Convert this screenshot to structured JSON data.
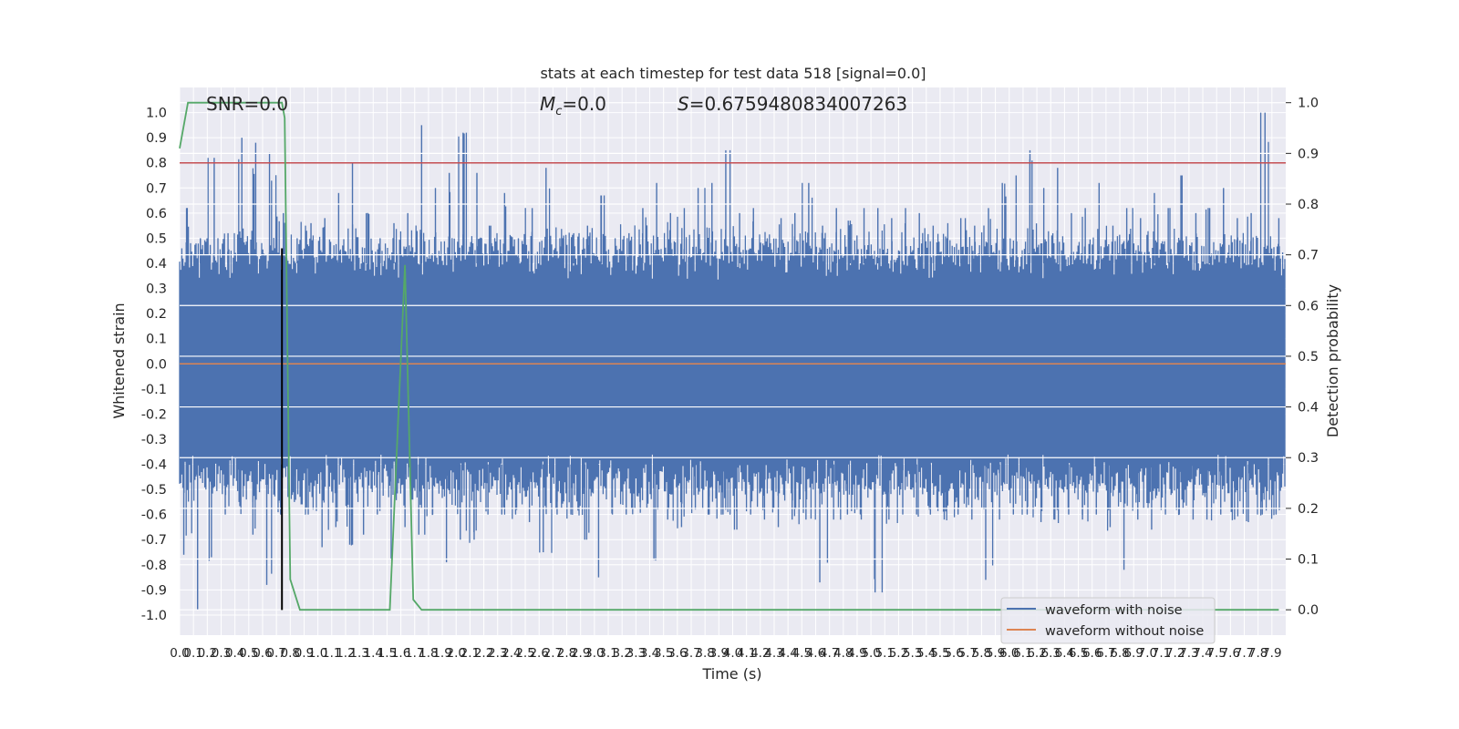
{
  "chart_data": {
    "type": "line",
    "title": "stats at each timestep for test data 518 [signal=0.0]",
    "annotations": {
      "snr": "SNR=0.0",
      "mc_symbol": "M",
      "mc_sub": "c",
      "mc_value": "=0.0",
      "s_symbol": "S",
      "s_value": "=0.6759480834007263"
    },
    "xlabel": "Time (s)",
    "ylabel_left": "Whitened strain",
    "ylabel_right": "Detection probability",
    "xlim": [
      0.0,
      8.0
    ],
    "ylim_left": [
      -1.08,
      1.1
    ],
    "ylim_right": [
      -0.05,
      1.03
    ],
    "xtick_labels": [
      "0.0",
      "0.1",
      "0.2",
      "0.3",
      "0.4",
      "0.5",
      "0.6",
      "0.7",
      "0.8",
      "0.9",
      "1.0",
      "1.1",
      "1.2",
      "1.3",
      "1.4",
      "1.5",
      "1.6",
      "1.7",
      "1.8",
      "1.9",
      "2.0",
      "2.1",
      "2.2",
      "2.3",
      "2.4",
      "2.5",
      "2.6",
      "2.7",
      "2.8",
      "2.9",
      "3.0",
      "3.1",
      "3.2",
      "3.3",
      "3.4",
      "3.5",
      "3.6",
      "3.7",
      "3.8",
      "3.9",
      "4.0",
      "4.1",
      "4.2",
      "4.3",
      "4.4",
      "4.5",
      "4.6",
      "4.7",
      "4.8",
      "4.9",
      "5.0",
      "5.1",
      "5.2",
      "5.3",
      "5.4",
      "5.5",
      "5.6",
      "5.7",
      "5.8",
      "5.9",
      "6.0",
      "6.1",
      "6.2",
      "6.3",
      "6.4",
      "6.5",
      "6.6",
      "6.7",
      "6.8",
      "6.9",
      "7.0",
      "7.1",
      "7.2",
      "7.3",
      "7.4",
      "7.5",
      "7.6",
      "7.7",
      "7.8",
      "7.9"
    ],
    "ytick_left_labels": [
      "1.0",
      "0.9",
      "0.8",
      "0.7",
      "0.6",
      "0.5",
      "0.4",
      "0.3",
      "0.2",
      "0.1",
      "0.0",
      "-0.1",
      "-0.2",
      "-0.3",
      "-0.4",
      "-0.5",
      "-0.6",
      "-0.7",
      "-0.8",
      "-0.9",
      "-1.0"
    ],
    "ytick_left_values": [
      1.0,
      0.9,
      0.8,
      0.7,
      0.6,
      0.5,
      0.4,
      0.3,
      0.2,
      0.1,
      0.0,
      -0.1,
      -0.2,
      -0.3,
      -0.4,
      -0.5,
      -0.6,
      -0.7,
      -0.8,
      -0.9,
      -1.0
    ],
    "ytick_right_labels": [
      "1.0",
      "0.9",
      "0.8",
      "0.7",
      "0.6",
      "0.5",
      "0.4",
      "0.3",
      "0.2",
      "0.1",
      "0.0"
    ],
    "ytick_right_values": [
      1.0,
      0.9,
      0.8,
      0.7,
      0.6,
      0.5,
      0.4,
      0.3,
      0.2,
      0.1,
      0.0
    ],
    "threshold": {
      "value": 0.8,
      "color": "#c44e52"
    },
    "marker_line": {
      "x": 0.74,
      "y_from": -0.98,
      "y_to": 0.46,
      "color": "#000000"
    },
    "series": [
      {
        "name": "waveform with noise",
        "color": "#4c72b0",
        "axis": "left",
        "style": "dense noise band",
        "envelope_upper": [
          0.62,
          0.5,
          0.82,
          0.52,
          0.9,
          0.88,
          0.84,
          0.6,
          0.5,
          0.56,
          0.58,
          0.68,
          0.8,
          0.6,
          0.5,
          0.56,
          0.6,
          0.95,
          0.7,
          0.76,
          0.92,
          0.76,
          0.55,
          0.68,
          0.5,
          0.62,
          0.78,
          0.5,
          0.52,
          0.55,
          0.67,
          0.5,
          0.52,
          0.62,
          0.72,
          0.6,
          0.62,
          0.7,
          0.72,
          0.85,
          0.6,
          0.62,
          0.5,
          0.58,
          0.6,
          0.72,
          0.55,
          0.62,
          0.57,
          0.62,
          0.62,
          0.58,
          0.62,
          0.6,
          0.55,
          0.5,
          0.58,
          0.55,
          0.62,
          0.72,
          0.75,
          0.85,
          0.7,
          0.78,
          0.6,
          0.62,
          0.72,
          0.55,
          0.62,
          0.58,
          0.68,
          0.62,
          0.75,
          0.6,
          0.62,
          0.7,
          0.58,
          0.6,
          1.0,
          0.58
        ],
        "envelope_lower": [
          -0.76,
          -0.98,
          -0.77,
          -0.6,
          -0.55,
          -0.68,
          -0.88,
          -0.6,
          -0.55,
          -0.6,
          -0.73,
          -0.65,
          -0.72,
          -0.68,
          -0.6,
          -0.78,
          -0.65,
          -0.68,
          -0.6,
          -0.79,
          -0.7,
          -0.7,
          -0.6,
          -0.6,
          -0.6,
          -0.63,
          -0.75,
          -0.6,
          -0.6,
          -0.7,
          -0.85,
          -0.6,
          -0.6,
          -0.55,
          -0.78,
          -0.62,
          -0.65,
          -0.58,
          -0.6,
          -0.6,
          -0.66,
          -0.6,
          -0.62,
          -0.65,
          -0.62,
          -0.62,
          -0.87,
          -0.62,
          -0.6,
          -0.62,
          -0.91,
          -0.62,
          -0.6,
          -0.6,
          -0.6,
          -0.62,
          -0.6,
          -0.62,
          -0.86,
          -0.62,
          -0.6,
          -0.6,
          -0.63,
          -0.62,
          -0.6,
          -0.62,
          -0.6,
          -0.65,
          -0.82,
          -0.62,
          -0.66,
          -0.6,
          -0.6,
          -0.62,
          -0.62,
          -0.6,
          -0.62,
          -0.63,
          -0.6,
          -0.6
        ]
      },
      {
        "name": "waveform without noise",
        "color": "#dd8452",
        "axis": "left",
        "x": [
          0.0,
          8.0
        ],
        "y": [
          0.0,
          0.0
        ]
      },
      {
        "name": "detection probability",
        "color": "#55a868",
        "axis": "right",
        "x": [
          0.0,
          0.06,
          0.11,
          0.74,
          0.76,
          0.8,
          0.87,
          1.46,
          1.52,
          1.63,
          1.69,
          1.75,
          2.5,
          4.0,
          5.5,
          7.0,
          7.95
        ],
        "y": [
          0.91,
          1.0,
          1.0,
          1.0,
          0.97,
          0.06,
          0.0,
          0.0,
          0.0,
          0.68,
          0.02,
          0.0,
          0.0,
          0.0,
          0.0,
          0.0,
          0.0
        ]
      }
    ],
    "legend": {
      "placement": "lower right",
      "entries": [
        "waveform with noise",
        "waveform without noise"
      ]
    },
    "grid": true
  },
  "colors": {
    "axes_background": "#eaeaf2",
    "grid": "#ffffff",
    "noise": "#4c72b0",
    "clean": "#dd8452",
    "probability": "#55a868",
    "threshold": "#c44e52"
  }
}
